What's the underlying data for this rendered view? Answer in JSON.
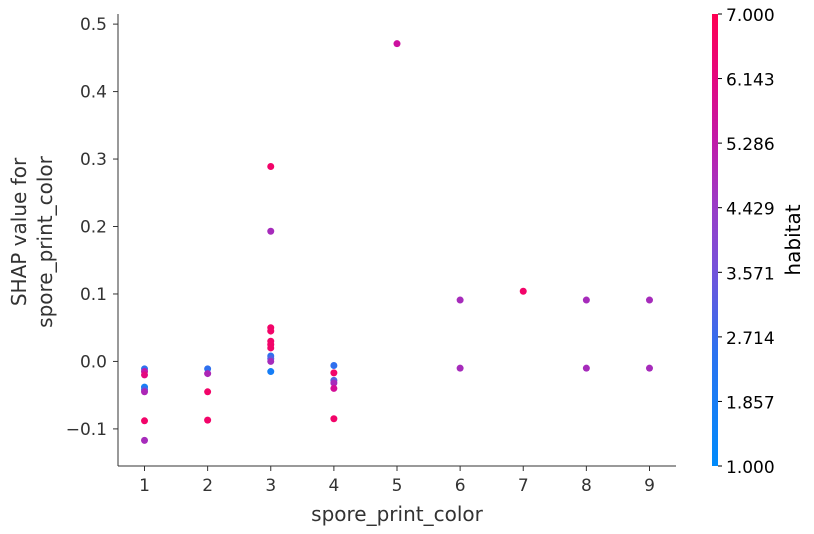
{
  "chart_data": {
    "type": "scatter",
    "title": "",
    "xlabel": "spore_print_color",
    "ylabel_lines": [
      "SHAP value for",
      "spore_print_color"
    ],
    "xlim": [
      0.58,
      9.42
    ],
    "ylim": [
      -0.155,
      0.515
    ],
    "xticks": [
      1,
      2,
      3,
      4,
      5,
      6,
      7,
      8,
      9
    ],
    "yticks": [
      -0.1,
      0.0,
      0.1,
      0.2,
      0.3,
      0.4,
      0.5
    ],
    "ytick_labels": [
      "−0.1",
      "0.0",
      "0.1",
      "0.2",
      "0.3",
      "0.4",
      "0.5"
    ],
    "colorbar": {
      "title": "habitat",
      "min": 1.0,
      "max": 7.0,
      "tick_values": [
        1.0,
        1.857,
        2.714,
        3.571,
        4.429,
        5.286,
        6.143,
        7.0
      ],
      "tick_labels": [
        "1.000",
        "1.857",
        "2.714",
        "3.571",
        "4.429",
        "5.286",
        "6.143",
        "7.000"
      ],
      "colors": [
        "#008bfb",
        "#2474f2",
        "#6559dc",
        "#923fcc",
        "#a928b8",
        "#cc10a0",
        "#e9077a",
        "#ff0052"
      ]
    },
    "points": [
      {
        "x": 1,
        "y": -0.011,
        "c": 2.0
      },
      {
        "x": 1,
        "y": -0.015,
        "c": 5.0
      },
      {
        "x": 1,
        "y": -0.02,
        "c": 6.0
      },
      {
        "x": 1,
        "y": -0.038,
        "c": 1.5
      },
      {
        "x": 1,
        "y": -0.042,
        "c": 2.3
      },
      {
        "x": 1,
        "y": -0.045,
        "c": 4.5
      },
      {
        "x": 1,
        "y": -0.088,
        "c": 6.5
      },
      {
        "x": 1,
        "y": -0.117,
        "c": 4.3
      },
      {
        "x": 2,
        "y": -0.011,
        "c": 2.0
      },
      {
        "x": 2,
        "y": -0.018,
        "c": 4.5
      },
      {
        "x": 2,
        "y": -0.045,
        "c": 6.5
      },
      {
        "x": 2,
        "y": -0.087,
        "c": 6.5
      },
      {
        "x": 3,
        "y": 0.289,
        "c": 6.5
      },
      {
        "x": 3,
        "y": 0.193,
        "c": 4.3
      },
      {
        "x": 3,
        "y": 0.05,
        "c": 6.5
      },
      {
        "x": 3,
        "y": 0.045,
        "c": 6.5
      },
      {
        "x": 3,
        "y": 0.03,
        "c": 6.5
      },
      {
        "x": 3,
        "y": 0.025,
        "c": 6.5
      },
      {
        "x": 3,
        "y": 0.02,
        "c": 6.5
      },
      {
        "x": 3,
        "y": 0.008,
        "c": 2.0
      },
      {
        "x": 3,
        "y": 0.004,
        "c": 2.5
      },
      {
        "x": 3,
        "y": 0.0,
        "c": 4.3
      },
      {
        "x": 3,
        "y": -0.015,
        "c": 1.5
      },
      {
        "x": 4,
        "y": -0.006,
        "c": 2.0
      },
      {
        "x": 4,
        "y": -0.017,
        "c": 6.5
      },
      {
        "x": 4,
        "y": -0.028,
        "c": 2.5
      },
      {
        "x": 4,
        "y": -0.032,
        "c": 4.3
      },
      {
        "x": 4,
        "y": -0.04,
        "c": 5.5
      },
      {
        "x": 4,
        "y": -0.085,
        "c": 6.5
      },
      {
        "x": 5,
        "y": 0.471,
        "c": 5.3
      },
      {
        "x": 6,
        "y": 0.091,
        "c": 4.3
      },
      {
        "x": 6,
        "y": -0.01,
        "c": 4.3
      },
      {
        "x": 7,
        "y": 0.104,
        "c": 6.5
      },
      {
        "x": 8,
        "y": 0.091,
        "c": 4.3
      },
      {
        "x": 8,
        "y": -0.01,
        "c": 4.3
      },
      {
        "x": 9,
        "y": 0.091,
        "c": 4.3
      },
      {
        "x": 9,
        "y": -0.01,
        "c": 4.3
      }
    ]
  }
}
